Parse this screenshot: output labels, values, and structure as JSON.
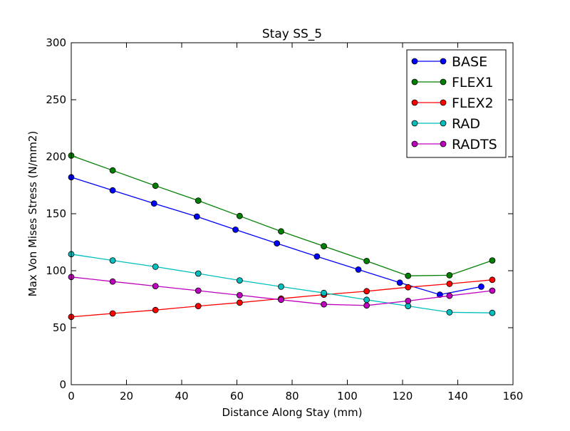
{
  "chart_data": {
    "type": "line",
    "title": "Stay SS_5",
    "xlabel": "Distance Along Stay (mm)",
    "ylabel": "Max Von Mises Stress (N/mm2)",
    "xlim": [
      0,
      160
    ],
    "ylim": [
      0,
      300
    ],
    "xticks": [
      0,
      20,
      40,
      60,
      80,
      100,
      120,
      140,
      160
    ],
    "yticks": [
      0,
      50,
      100,
      150,
      200,
      250,
      300
    ],
    "grid": false,
    "legend_position": "top-right",
    "series": [
      {
        "name": "BASE",
        "color": "#0000ff",
        "x": [
          0,
          15,
          30,
          45.5,
          59.5,
          74.5,
          89,
          104,
          119,
          133.5,
          148.5
        ],
        "y": [
          182,
          170.5,
          159,
          147.5,
          136,
          124,
          112.5,
          101,
          89.5,
          79,
          86
        ]
      },
      {
        "name": "FLEX1",
        "color": "#008000",
        "x": [
          0,
          15,
          30.5,
          46,
          61,
          76,
          91.5,
          107,
          122,
          137,
          152.5
        ],
        "y": [
          201,
          188,
          174.5,
          161.5,
          148,
          134.5,
          121.5,
          108.5,
          95.5,
          96,
          109
        ]
      },
      {
        "name": "FLEX2",
        "color": "#ff0000",
        "x": [
          0,
          15,
          30.5,
          46,
          61,
          76,
          91.5,
          107,
          122,
          137,
          152.5
        ],
        "y": [
          59.5,
          62.5,
          65.5,
          69,
          72,
          75.5,
          79,
          82,
          85.5,
          88.5,
          92
        ]
      },
      {
        "name": "RAD",
        "color": "#00bfbf",
        "x": [
          0,
          15,
          30.5,
          46,
          61,
          76,
          91.5,
          107,
          122,
          137,
          152.5
        ],
        "y": [
          114.5,
          109,
          103.5,
          97.5,
          91.5,
          86,
          80.5,
          74.5,
          69,
          63.5,
          63
        ]
      },
      {
        "name": "RADTS",
        "color": "#bf00bf",
        "x": [
          0,
          15,
          30.5,
          46,
          61,
          76,
          91.5,
          107,
          122,
          137,
          152.5
        ],
        "y": [
          94.5,
          90.5,
          86.5,
          82.5,
          78.5,
          74.5,
          70.5,
          69.5,
          73.5,
          78,
          82.5
        ]
      }
    ]
  }
}
